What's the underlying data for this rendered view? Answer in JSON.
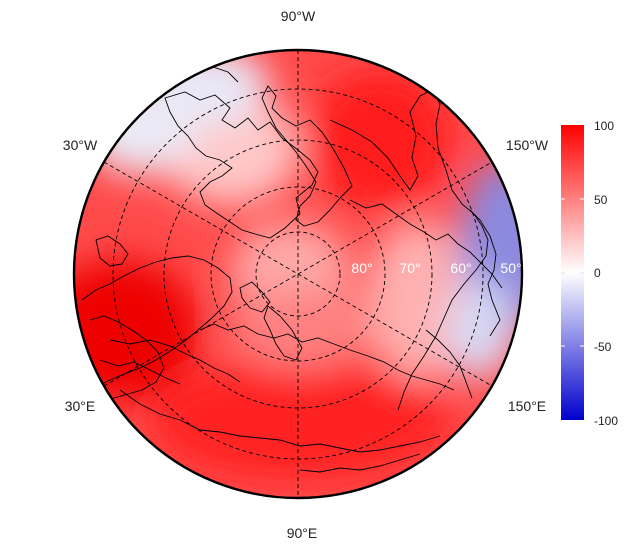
{
  "map": {
    "projection": "north-polar-stereographic",
    "longitude_labels": [
      {
        "id": "lon-90w",
        "text": "90°W"
      },
      {
        "id": "lon-30w",
        "text": "30°W"
      },
      {
        "id": "lon-150w",
        "text": "150°W"
      },
      {
        "id": "lon-30e",
        "text": "30°E"
      },
      {
        "id": "lon-150e",
        "text": "150°E"
      },
      {
        "id": "lon-90e",
        "text": "90°E"
      }
    ],
    "latitude_labels": [
      {
        "id": "lat-80",
        "text": "80°"
      },
      {
        "id": "lat-70",
        "text": "70°"
      },
      {
        "id": "lat-60",
        "text": "60°"
      },
      {
        "id": "lat-50",
        "text": "50°"
      }
    ],
    "colors": {
      "high": "#ff0000",
      "mid": "#ffffff",
      "low": "#0000cc",
      "coastline": "#000000",
      "graticule": "#000000"
    }
  },
  "colorbar": {
    "ticks": [
      "100",
      "50",
      "0",
      "-50",
      "-100"
    ],
    "range": [
      -100,
      100
    ]
  }
}
